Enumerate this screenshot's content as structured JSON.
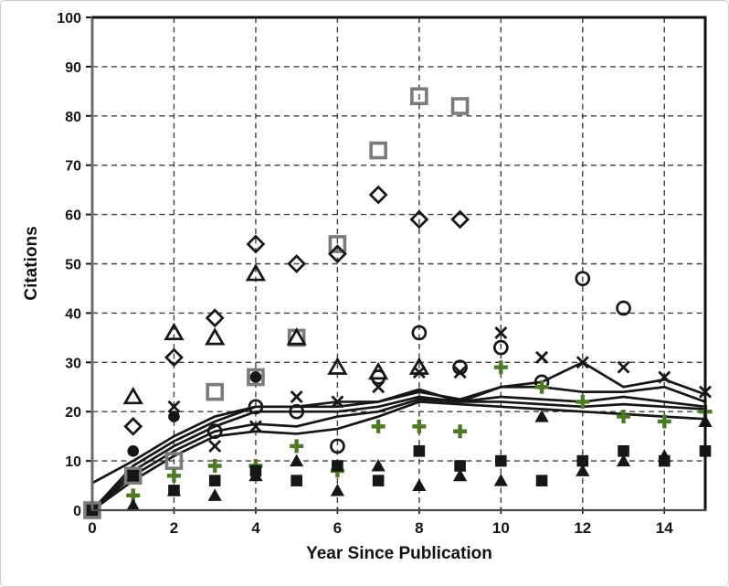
{
  "chart_data": {
    "type": "scatter",
    "title": "",
    "xlabel": "Year Since Publication",
    "ylabel": "Citations",
    "xlim": [
      0,
      15
    ],
    "ylim": [
      0,
      100
    ],
    "x_ticks": [
      0,
      2,
      4,
      6,
      8,
      10,
      12,
      14
    ],
    "y_ticks": [
      0,
      10,
      20,
      30,
      40,
      50,
      60,
      70,
      80,
      90,
      100
    ],
    "grid": "dashed-both-axes",
    "legend_position": "none",
    "colors": {
      "black": "#161616",
      "grey": "#7b7b7b",
      "green": "#4e7a28"
    },
    "series": [
      {
        "name": "trend-line-1",
        "type": "line",
        "color": "#161616",
        "x": [
          0,
          1,
          2,
          3,
          4,
          5,
          6,
          7,
          8,
          9,
          10,
          11,
          12,
          13,
          14,
          15
        ],
        "y": [
          5.5,
          10,
          15,
          19,
          21,
          21,
          22,
          22,
          24.5,
          22,
          25,
          26,
          30,
          25,
          26.5,
          23.5
        ]
      },
      {
        "name": "trend-line-2",
        "type": "line",
        "color": "#161616",
        "x": [
          0,
          1,
          2,
          3,
          4,
          5,
          6,
          7,
          8,
          9,
          10,
          11,
          12,
          13,
          14,
          15
        ],
        "y": [
          0,
          9,
          14,
          18,
          21,
          21,
          21,
          22,
          24,
          22.5,
          25,
          25,
          24,
          24,
          25,
          22
        ]
      },
      {
        "name": "trend-line-3",
        "type": "line",
        "color": "#161616",
        "x": [
          0,
          1,
          2,
          3,
          4,
          5,
          6,
          7,
          8,
          9,
          10,
          11,
          12,
          13,
          14,
          15
        ],
        "y": [
          0,
          8,
          13,
          17,
          20,
          20,
          20,
          21,
          23,
          22,
          23,
          22.5,
          22,
          23,
          22,
          21
        ]
      },
      {
        "name": "trend-line-4",
        "type": "line",
        "color": "#161616",
        "x": [
          0,
          1,
          2,
          3,
          4,
          5,
          6,
          7,
          8,
          9,
          10,
          11,
          12,
          13,
          14,
          15
        ],
        "y": [
          0,
          7,
          12,
          16,
          17.5,
          17,
          19,
          20,
          22.5,
          22,
          22,
          21.5,
          21,
          21.5,
          21,
          20.5
        ]
      },
      {
        "name": "trend-line-5",
        "type": "line",
        "color": "#161616",
        "x": [
          0,
          1,
          2,
          3,
          4,
          5,
          6,
          7,
          8,
          9,
          10,
          11,
          12,
          13,
          14,
          15
        ],
        "y": [
          0,
          6,
          11,
          15,
          16,
          15.5,
          16.5,
          19,
          22,
          21.5,
          21,
          20.5,
          20,
          19.5,
          19,
          18.5
        ]
      },
      {
        "name": "grey-open-square-series",
        "type": "scatter",
        "marker": "open-square",
        "color": "#7b7b7b",
        "x": [
          0,
          1,
          2,
          3,
          4,
          5,
          6,
          7,
          8,
          9
        ],
        "y": [
          0,
          7,
          10,
          24,
          27,
          35,
          54,
          73,
          84,
          82
        ]
      },
      {
        "name": "open-diamond-series",
        "type": "scatter",
        "marker": "open-diamond",
        "color": "#161616",
        "x": [
          1,
          2,
          3,
          4,
          5,
          6,
          7,
          8,
          9
        ],
        "y": [
          17,
          31,
          39,
          54,
          50,
          52,
          64,
          59,
          59
        ]
      },
      {
        "name": "open-triangle-series",
        "type": "scatter",
        "marker": "open-triangle",
        "color": "#161616",
        "x": [
          1,
          2,
          3,
          4,
          5,
          6,
          7,
          8
        ],
        "y": [
          23,
          36,
          35,
          48,
          35,
          29,
          28,
          29
        ]
      },
      {
        "name": "open-circle-series",
        "type": "scatter",
        "marker": "open-circle",
        "color": "#161616",
        "x": [
          3,
          4,
          5,
          6,
          7,
          8,
          9,
          10,
          11,
          12,
          13
        ],
        "y": [
          16,
          21,
          20,
          13,
          27,
          36,
          29,
          33,
          26,
          47,
          41
        ]
      },
      {
        "name": "x-mark-series",
        "type": "scatter",
        "marker": "x-mark",
        "color": "#161616",
        "x": [
          1,
          2,
          3,
          4,
          5,
          6,
          7,
          8,
          9,
          10,
          11,
          12,
          13,
          14,
          15
        ],
        "y": [
          7,
          21,
          13,
          17,
          23,
          22,
          25,
          28,
          28,
          36,
          31,
          30,
          29,
          27,
          24
        ]
      },
      {
        "name": "green-plus-series",
        "type": "scatter",
        "marker": "plus",
        "color": "#4e7a28",
        "x": [
          1,
          2,
          3,
          4,
          5,
          6,
          7,
          8,
          9,
          10,
          11,
          12,
          13,
          14,
          15
        ],
        "y": [
          3,
          7,
          9,
          9,
          13,
          8,
          17,
          17,
          16,
          29,
          25,
          22,
          19,
          18,
          20
        ]
      },
      {
        "name": "filled-circle-series",
        "type": "scatter",
        "marker": "filled-circle",
        "color": "#161616",
        "x": [
          1,
          2,
          4
        ],
        "y": [
          12,
          19,
          27
        ]
      },
      {
        "name": "filled-square-series",
        "type": "scatter",
        "marker": "filled-square",
        "color": "#161616",
        "x": [
          0,
          1,
          2,
          3,
          4,
          5,
          6,
          7,
          8,
          9,
          10,
          11,
          12,
          13,
          14,
          15
        ],
        "y": [
          0,
          7,
          4,
          6,
          8,
          6,
          9,
          6,
          12,
          9,
          10,
          6,
          10,
          12,
          10,
          12
        ]
      },
      {
        "name": "filled-triangle-series",
        "type": "scatter",
        "marker": "filled-triangle",
        "color": "#161616",
        "x": [
          1,
          2,
          3,
          4,
          5,
          6,
          7,
          8,
          9,
          10,
          11,
          12,
          13,
          14,
          15
        ],
        "y": [
          1,
          4,
          3,
          7,
          10,
          4,
          9,
          5,
          7,
          6,
          19,
          8,
          10,
          11,
          18
        ]
      }
    ]
  }
}
